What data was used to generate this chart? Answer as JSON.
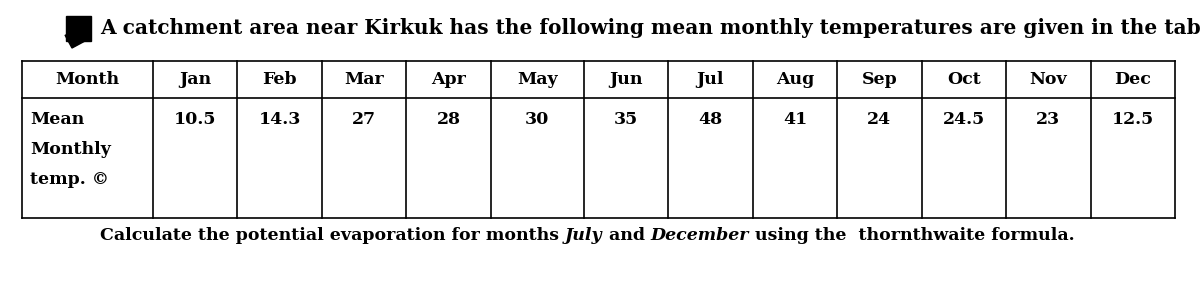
{
  "title": "A catchment area near Kirkuk has the following mean monthly temperatures are given in the table",
  "months": [
    "Month",
    "Jan",
    "Feb",
    "Mar",
    "Apr",
    "May",
    "Jun",
    "Jul",
    "Aug",
    "Sep",
    "Oct",
    "Nov",
    "Dec"
  ],
  "row_label_lines": [
    "Mean",
    "Monthly",
    "temp. ©"
  ],
  "values": [
    "10.5",
    "14.3",
    "27",
    "28",
    "30",
    "35",
    "48",
    "41",
    "24",
    "24.5",
    "23",
    "12.5"
  ],
  "footer_parts": [
    {
      "text": "Calculate the potential evaporation for months ",
      "style": "normal"
    },
    {
      "text": "July",
      "style": "italic"
    },
    {
      "text": " and ",
      "style": "normal"
    },
    {
      "text": "December",
      "style": "italic"
    },
    {
      "text": " using the  thornthwaite formula.",
      "style": "normal"
    }
  ],
  "bg_color": "#ffffff",
  "text_color": "#000000",
  "table_font_size": 12.5,
  "title_font_size": 14.5,
  "footer_font_size": 12.5,
  "col_widths_rel": [
    1.55,
    1.0,
    1.0,
    1.0,
    1.0,
    1.1,
    1.0,
    1.0,
    1.0,
    1.0,
    1.0,
    1.0,
    1.0
  ]
}
